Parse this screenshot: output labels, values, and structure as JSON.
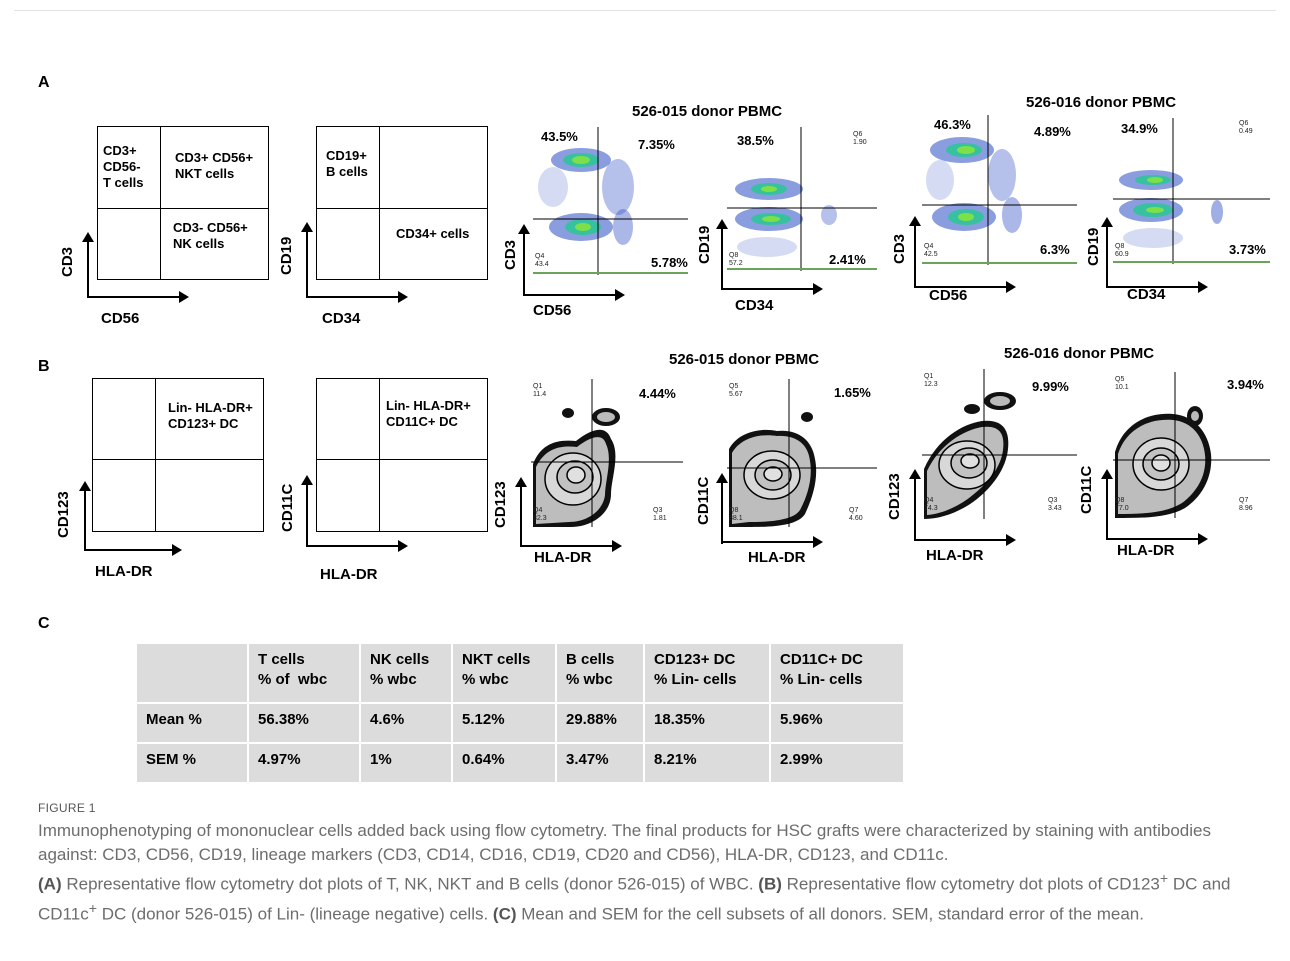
{
  "panels": {
    "a": "A",
    "b": "B",
    "c": "C"
  },
  "panel_a": {
    "schematic1": {
      "q1": "CD3+\nCD56-\nT cells",
      "q2": "CD3+ CD56+\nNKT cells",
      "q4": "CD3- CD56+\nNK cells",
      "xlabel": "CD56",
      "ylabel": "CD3"
    },
    "schematic2": {
      "q1": "CD19+\nB cells",
      "q4": "CD34+ cells",
      "xlabel": "CD34",
      "ylabel": "CD19"
    },
    "donor1_title": "526-015 donor PBMC",
    "donor2_title": "526-016 donor PBMC",
    "plots": [
      {
        "xlabel": "CD56",
        "ylabel": "CD3",
        "ul": "43.5%",
        "ur": "7.35%",
        "lr": "5.78%",
        "q4": "Q4\n43.4",
        "q_ur": ""
      },
      {
        "xlabel": "CD34",
        "ylabel": "CD19",
        "ul": "38.5%",
        "ur": "",
        "lr": "2.41%",
        "q4": "Q8\n57.2",
        "q_ur": "Q6\n1.90"
      },
      {
        "xlabel": "CD56",
        "ylabel": "CD3",
        "ul": "46.3%",
        "ur": "4.89%",
        "lr": "6.3%",
        "q4": "Q4\n42.5",
        "q_ur": ""
      },
      {
        "xlabel": "CD34",
        "ylabel": "CD19",
        "ul": "34.9%",
        "ur": "",
        "lr": "3.73%",
        "q4": "Q8\n60.9",
        "q_ur": "Q6\n0.49"
      }
    ]
  },
  "panel_b": {
    "schematic1": {
      "q2": "Lin- HLA-DR+\nCD123+ DC",
      "xlabel": "HLA-DR",
      "ylabel": "CD123"
    },
    "schematic2": {
      "q2": "Lin- HLA-DR+\nCD11C+ DC",
      "xlabel": "HLA-DR",
      "ylabel": "CD11C"
    },
    "donor1_title": "526-015 donor PBMC",
    "donor2_title": "526-016 donor PBMC",
    "plots": [
      {
        "xlabel": "HLA-DR",
        "ylabel": "CD123",
        "ur": "4.44%",
        "q1": "Q1\n11.4",
        "q4": "Q4\n82.3",
        "q3": "Q3\n1.81"
      },
      {
        "xlabel": "HLA-DR",
        "ylabel": "CD11C",
        "ur": "1.65%",
        "q1": "Q5\n5.67",
        "q4": "Q8\n88.1",
        "q3": "Q7\n4.60"
      },
      {
        "xlabel": "HLA-DR",
        "ylabel": "CD123",
        "ur": "9.99%",
        "q1": "Q1\n12.3",
        "q4": "Q4\n74.3",
        "q3": "Q3\n3.43"
      },
      {
        "xlabel": "HLA-DR",
        "ylabel": "CD11C",
        "ur": "3.94%",
        "q1": "Q5\n10.1",
        "q4": "Q8\n77.0",
        "q3": "Q7\n8.96"
      }
    ]
  },
  "table": {
    "headers": [
      "",
      "T cells\n% of  wbc",
      "NK cells\n% wbc",
      "NKT cells\n% wbc",
      "B cells\n% wbc",
      "CD123+ DC\n% Lin- cells",
      "CD11C+ DC\n% Lin- cells"
    ],
    "rows": [
      [
        "Mean %",
        "56.38%",
        "4.6%",
        "5.12%",
        "29.88%",
        "18.35%",
        "5.96%"
      ],
      [
        "SEM %",
        "4.97%",
        "1%",
        "0.64%",
        "3.47%",
        "8.21%",
        "2.99%"
      ]
    ]
  },
  "caption": {
    "label": "FIGURE 1",
    "line1": "Immunophenotyping of mononuclear cells added back using flow cytometry. The final products for HSC grafts were characterized by staining with antibodies against: CD3, CD56, CD19, lineage markers (CD3, CD14, CD16, CD19, CD20 and CD56), HLA-DR, CD123, and CD11c.",
    "a_tag": "(A)",
    "a_text": " Representative flow cytometry dot plots of T, NK, NKT and B cells (donor 526-015) of WBC. ",
    "b_tag": "(B)",
    "b_text_1": " Representative flow cytometry dot plots of CD123",
    "b_sup1": "+",
    "b_text_2": " DC and CD11c",
    "b_sup2": "+",
    "b_text_3": " DC (donor 526-015) of Lin- (lineage negative) cells. ",
    "c_tag": "(C)",
    "c_text": " Mean and SEM for the cell subsets of all donors. SEM, standard error of the mean."
  }
}
